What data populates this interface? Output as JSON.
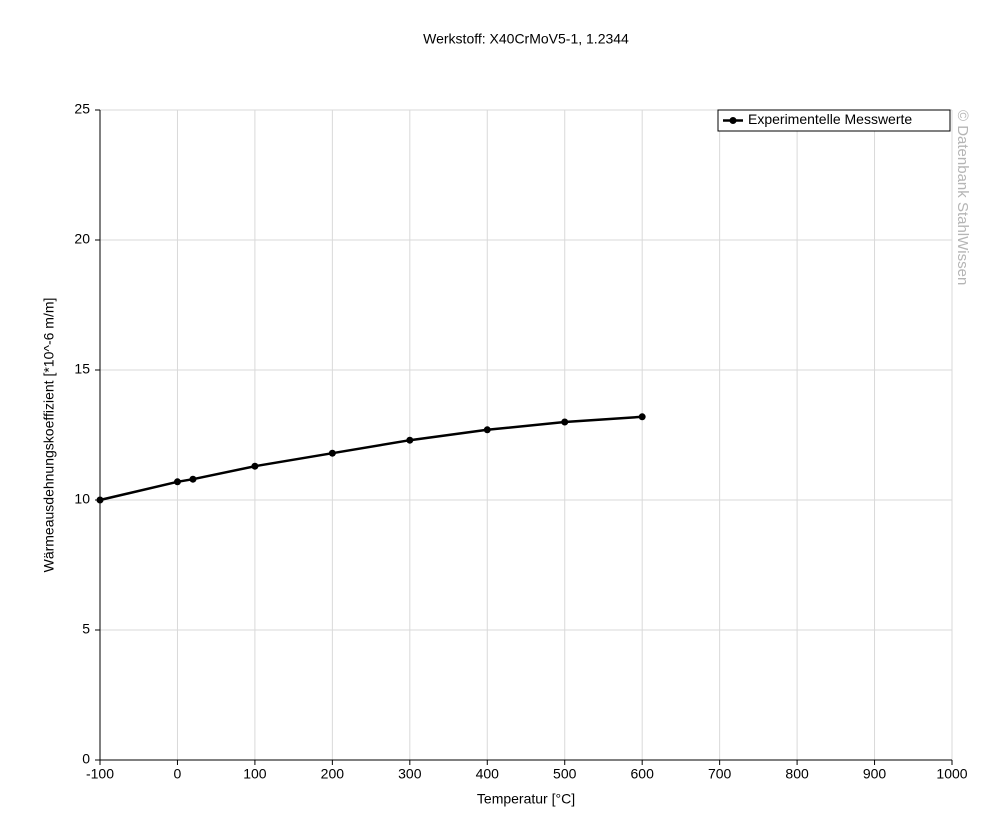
{
  "chart_data": {
    "type": "line",
    "title": "Werkstoff: X40CrMoV5-1, 1.2344",
    "x_label": "Temperatur [°C]",
    "y_label": "Wärmeausdehnungskoeffizient [*10^-6 m/m]",
    "watermark": "© Datenbank StahlWissen",
    "x": [
      -100,
      0,
      20,
      100,
      200,
      300,
      400,
      500,
      600
    ],
    "series": [
      {
        "name": "Experimentelle Messwerte",
        "color": "#000000",
        "values": [
          10.0,
          10.7,
          10.8,
          11.3,
          11.8,
          12.3,
          12.7,
          13.0,
          13.2
        ]
      }
    ],
    "xlim": [
      -100,
      1000
    ],
    "xticks": [
      -100,
      0,
      100,
      200,
      300,
      400,
      500,
      600,
      700,
      800,
      900,
      1000
    ],
    "ylim": [
      0,
      25
    ],
    "yticks": [
      0,
      5,
      10,
      15,
      20,
      25
    ],
    "grid": true,
    "legend": "upper right"
  }
}
